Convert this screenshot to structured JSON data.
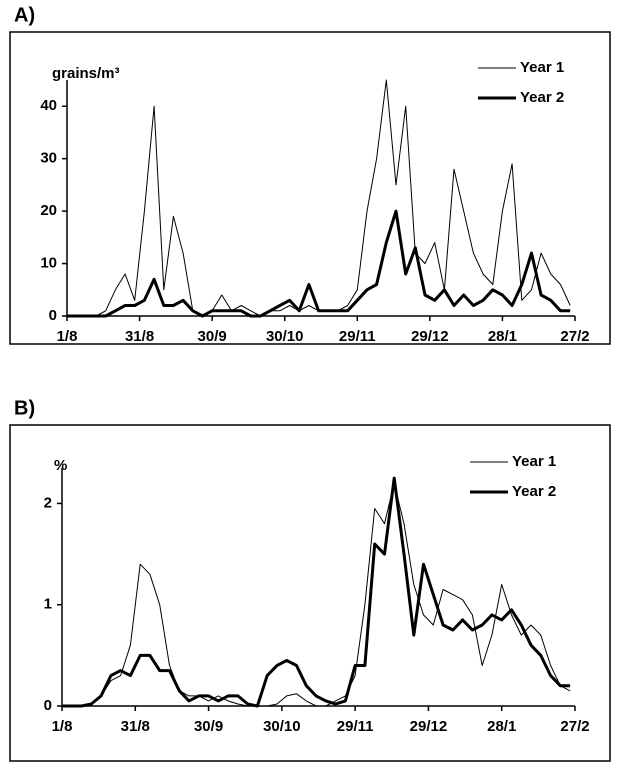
{
  "chart_data": [
    {
      "type": "line",
      "panel_label": "A)",
      "y_label": "grains/m³",
      "x": [
        0,
        4,
        8,
        12,
        16,
        20,
        24,
        28,
        32,
        36,
        40,
        44,
        48,
        52,
        56,
        60,
        64,
        68,
        72,
        76,
        80,
        84,
        88,
        92,
        96,
        100,
        104,
        108,
        112,
        116,
        120,
        124,
        128,
        132,
        136,
        140,
        144,
        148,
        152,
        156,
        160,
        164,
        168,
        172,
        176,
        180,
        184,
        188,
        192,
        196,
        200,
        204,
        208
      ],
      "series": [
        {
          "name": "Year 1",
          "color": "#000000",
          "line_width": 1,
          "values": [
            0,
            0,
            0,
            0,
            1,
            5,
            8,
            3,
            20,
            40,
            5,
            19,
            12,
            1,
            0,
            1,
            4,
            1,
            2,
            1,
            0,
            1,
            1,
            2,
            1,
            2,
            1,
            1,
            1,
            2,
            5,
            20,
            30,
            45,
            25,
            40,
            12,
            10,
            14,
            5,
            28,
            20,
            12,
            8,
            6,
            20,
            29,
            3,
            5,
            12,
            8,
            6,
            2
          ]
        },
        {
          "name": "Year 2",
          "color": "#000000",
          "line_width": 3,
          "values": [
            0,
            0,
            0,
            0,
            0,
            1,
            2,
            2,
            3,
            7,
            2,
            2,
            3,
            1,
            0,
            1,
            1,
            1,
            1,
            0,
            0,
            1,
            2,
            3,
            1,
            6,
            1,
            1,
            1,
            1,
            3,
            5,
            6,
            14,
            20,
            8,
            13,
            4,
            3,
            5,
            2,
            4,
            2,
            3,
            5,
            4,
            2,
            6,
            12,
            4,
            3,
            1,
            1
          ]
        }
      ],
      "xlim": [
        0,
        210
      ],
      "xticks": [
        {
          "value": 0,
          "label": "1/8"
        },
        {
          "value": 30,
          "label": "31/8"
        },
        {
          "value": 60,
          "label": "30/9"
        },
        {
          "value": 90,
          "label": "30/10"
        },
        {
          "value": 120,
          "label": "29/11"
        },
        {
          "value": 150,
          "label": "29/12"
        },
        {
          "value": 180,
          "label": "28/1"
        },
        {
          "value": 210,
          "label": "27/2"
        }
      ],
      "ylim": [
        0,
        45
      ],
      "yticks": [
        0,
        10,
        20,
        30,
        40
      ],
      "legend": "top-right"
    },
    {
      "type": "line",
      "panel_label": "B)",
      "y_label": "%",
      "x": [
        0,
        4,
        8,
        12,
        16,
        20,
        24,
        28,
        32,
        36,
        40,
        44,
        48,
        52,
        56,
        60,
        64,
        68,
        72,
        76,
        80,
        84,
        88,
        92,
        96,
        100,
        104,
        108,
        112,
        116,
        120,
        124,
        128,
        132,
        136,
        140,
        144,
        148,
        152,
        156,
        160,
        164,
        168,
        172,
        176,
        180,
        184,
        188,
        192,
        196,
        200,
        204,
        208
      ],
      "series": [
        {
          "name": "Year 1",
          "color": "#000000",
          "line_width": 1,
          "values": [
            0,
            0,
            0,
            0.02,
            0.1,
            0.25,
            0.3,
            0.6,
            1.4,
            1.3,
            1.0,
            0.4,
            0.15,
            0.1,
            0.1,
            0.05,
            0.1,
            0.05,
            0.02,
            0,
            0,
            0,
            0.02,
            0.1,
            0.12,
            0.05,
            0,
            0,
            0.05,
            0.1,
            0.3,
            1.0,
            1.95,
            1.8,
            2.2,
            1.8,
            1.2,
            0.9,
            0.8,
            1.15,
            1.1,
            1.05,
            0.9,
            0.4,
            0.7,
            1.2,
            0.9,
            0.7,
            0.8,
            0.7,
            0.4,
            0.2,
            0.15
          ]
        },
        {
          "name": "Year 2",
          "color": "#000000",
          "line_width": 3,
          "values": [
            0,
            0,
            0,
            0.02,
            0.1,
            0.3,
            0.35,
            0.3,
            0.5,
            0.5,
            0.35,
            0.35,
            0.15,
            0.05,
            0.1,
            0.1,
            0.05,
            0.1,
            0.1,
            0.02,
            0,
            0.3,
            0.4,
            0.45,
            0.4,
            0.2,
            0.1,
            0.05,
            0.02,
            0.05,
            0.4,
            0.4,
            1.6,
            1.5,
            2.25,
            1.5,
            0.7,
            1.4,
            1.1,
            0.8,
            0.75,
            0.85,
            0.75,
            0.8,
            0.9,
            0.85,
            0.95,
            0.8,
            0.6,
            0.5,
            0.3,
            0.2,
            0.2
          ]
        }
      ],
      "xlim": [
        0,
        210
      ],
      "xticks": [
        {
          "value": 0,
          "label": "1/8"
        },
        {
          "value": 30,
          "label": "31/8"
        },
        {
          "value": 60,
          "label": "30/9"
        },
        {
          "value": 90,
          "label": "30/10"
        },
        {
          "value": 120,
          "label": "29/11"
        },
        {
          "value": 150,
          "label": "29/12"
        },
        {
          "value": 180,
          "label": "28/1"
        },
        {
          "value": 210,
          "label": "27/2"
        }
      ],
      "ylim": [
        0,
        2.35
      ],
      "yticks": [
        0,
        1,
        2
      ],
      "legend": "top-right"
    }
  ]
}
